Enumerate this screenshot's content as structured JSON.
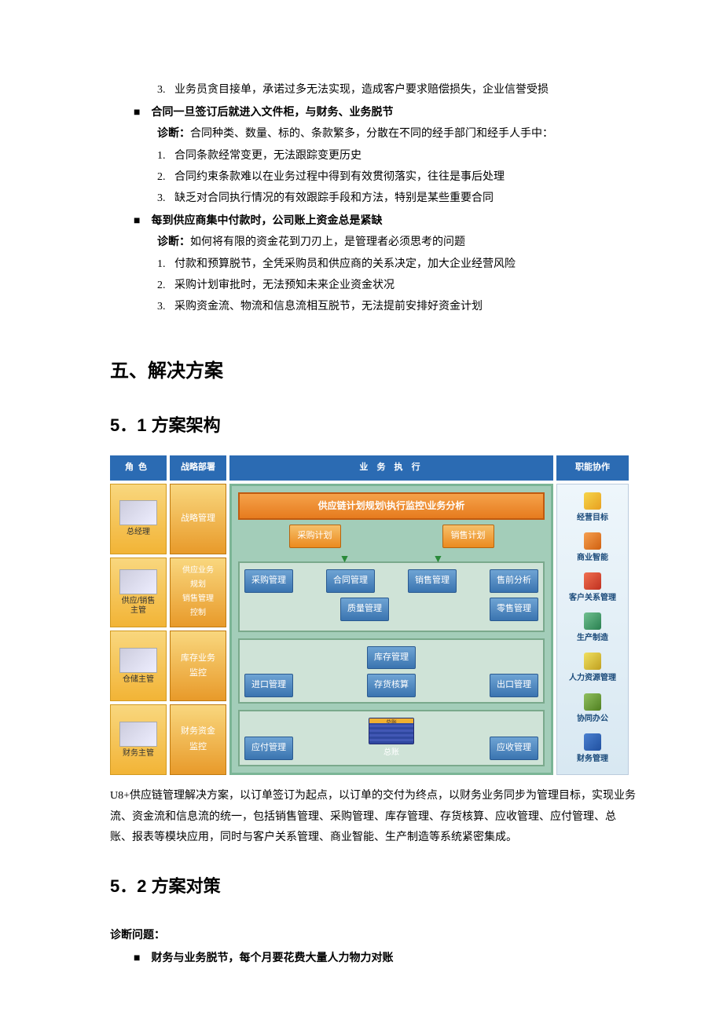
{
  "top_list": {
    "item3": "业务员贪目接单，承诺过多无法实现，造成客户要求赔偿损失，企业信誉受损"
  },
  "section1": {
    "title": "合同一旦签订后就进入文件柜，与财务、业务脱节",
    "diag_label": "诊断：",
    "diag_text": "合同种类、数量、标的、条款繁多，分散在不同的经手部门和经手人手中：",
    "i1": "合同条款经常变更，无法跟踪变更历史",
    "i2": "合同约束条款难以在业务过程中得到有效贯彻落实，往往是事后处理",
    "i3": "缺乏对合同执行情况的有效跟踪手段和方法，特别是某些重要合同"
  },
  "section2": {
    "title": "每到供应商集中付款时，公司账上资金总是紧缺",
    "diag_label": "诊断：",
    "diag_text": "如何将有限的资金花到刀刃上，是管理者必须思考的问题",
    "i1": "付款和预算脱节，全凭采购员和供应商的关系决定，加大企业经营风险",
    "i2": "采购计划审批时，无法预知未来企业资金状况",
    "i3": "采购资金流、物流和信息流相互脱节，无法提前安排好资金计划"
  },
  "h1": "五、解决方案",
  "h2a": "5．1 方案架构",
  "diagram": {
    "headers": {
      "role": "角色",
      "strat": "战略部署",
      "exec": "业 务 执 行",
      "func": "职能协作"
    },
    "roles": [
      {
        "label": "总经理",
        "strat": "战略管理"
      },
      {
        "label": "供应/销售\n主管",
        "strat": "供应业务\n规划\n销售管理\n控制"
      },
      {
        "label": "仓储主管",
        "strat": "库存业务\n监控"
      },
      {
        "label": "财务主管",
        "strat": "财务资金\n监控"
      }
    ],
    "banner": "供应链计划规划\\执行监控\\业务分析",
    "plan": {
      "a": "采购计划",
      "b": "销售计划"
    },
    "box1": {
      "a": "采购管理",
      "b": "合同管理",
      "c": "销售管理",
      "d": "售前分析",
      "e": "质量管理",
      "f": "零售管理"
    },
    "box2": {
      "a": "库存管理",
      "b": "进口管理",
      "c": "存货核算",
      "d": "出口管理"
    },
    "box3": {
      "a": "应付管理",
      "b": "总账",
      "c": "应收管理",
      "led": "总账"
    },
    "func": [
      "经营目标",
      "商业智能",
      "客户关系管理",
      "生产制造",
      "人力资源管理",
      "协同办公",
      "财务管理"
    ],
    "colors": {
      "header": "#2b6bb3",
      "orange_light": "#f9d77e",
      "orange_dark": "#e89a2a",
      "exec_bg": "#a3cdb9",
      "exec_border": "#7bb596",
      "banner_a": "#f5a24a",
      "banner_b": "#e67b1e",
      "blue_a": "#6fa4d4",
      "blue_b": "#3a74b0"
    }
  },
  "desc": "U8+供应链管理解决方案，以订单签订为起点，以订单的交付为终点，以财务业务同步为管理目标，实现业务流、资金流和信息流的统一，包括销售管理、采购管理、库存管理、存货核算、应收管理、应付管理、总账、报表等模块应用，同时与客户关系管理、商业智能、生产制造等系统紧密集成。",
  "h2b": "5．2 方案对策",
  "diag52_label": "诊断问题：",
  "diag52_item": "财务与业务脱节，每个月要花费大量人力物力对账"
}
